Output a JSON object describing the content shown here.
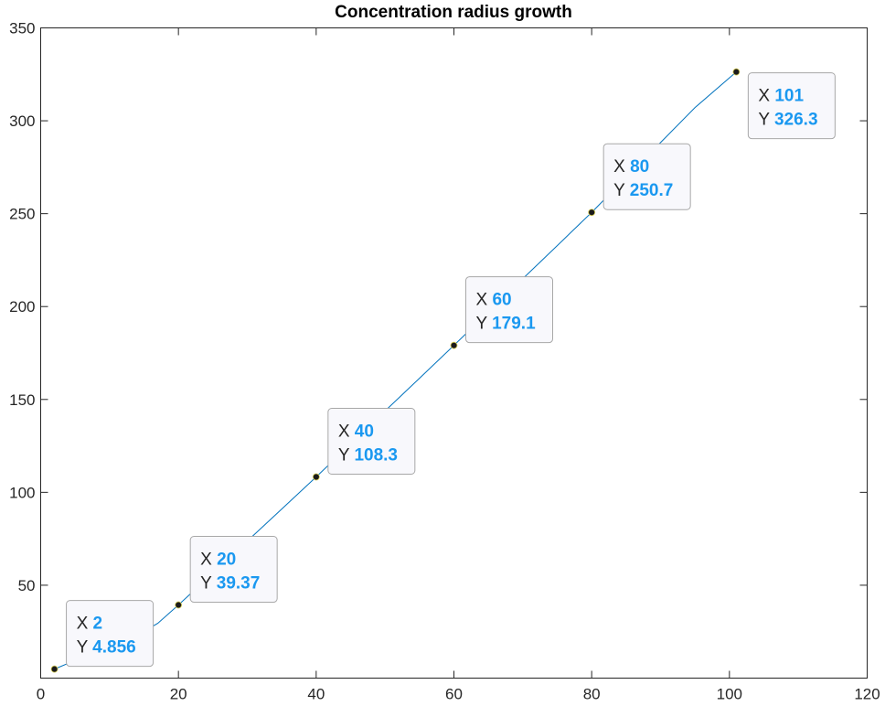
{
  "chart_data": {
    "type": "line",
    "title": "Concentration radius growth",
    "xlabel": "",
    "ylabel": "",
    "xlim": [
      0,
      120
    ],
    "ylim": [
      0,
      350
    ],
    "xticks": [
      0,
      20,
      40,
      60,
      80,
      100,
      120
    ],
    "yticks": [
      50,
      100,
      150,
      200,
      250,
      300,
      350
    ],
    "grid": false,
    "series": [
      {
        "color": "#0072BD",
        "x": [
          2,
          5,
          8,
          11,
          14,
          17,
          20,
          25,
          30,
          35,
          40,
          45,
          50,
          55,
          60,
          65,
          70,
          75,
          80,
          85,
          90,
          95,
          101
        ],
        "y": [
          4.856,
          9.5,
          13.5,
          18.0,
          23.0,
          29.5,
          39.37,
          56.5,
          73.8,
          91.0,
          108.3,
          126.0,
          143.8,
          161.4,
          179.1,
          197.0,
          215.0,
          232.8,
          250.7,
          269.5,
          288.3,
          307.1,
          326.3
        ]
      }
    ],
    "datatips": [
      {
        "x_label": "X",
        "x_value": "2",
        "y_label": "Y",
        "y_value": "4.856",
        "x": 2,
        "y": 4.856
      },
      {
        "x_label": "X",
        "x_value": "20",
        "y_label": "Y",
        "y_value": "39.37",
        "x": 20,
        "y": 39.37
      },
      {
        "x_label": "X",
        "x_value": "40",
        "y_label": "Y",
        "y_value": "108.3",
        "x": 40,
        "y": 108.3
      },
      {
        "x_label": "X",
        "x_value": "60",
        "y_label": "Y",
        "y_value": "179.1",
        "x": 60,
        "y": 179.1
      },
      {
        "x_label": "X",
        "x_value": "80",
        "y_label": "Y",
        "y_value": "250.7",
        "x": 80,
        "y": 250.7
      },
      {
        "x_label": "X",
        "x_value": "101",
        "y_label": "Y",
        "y_value": "326.3",
        "x": 101,
        "y": 326.3
      }
    ]
  }
}
